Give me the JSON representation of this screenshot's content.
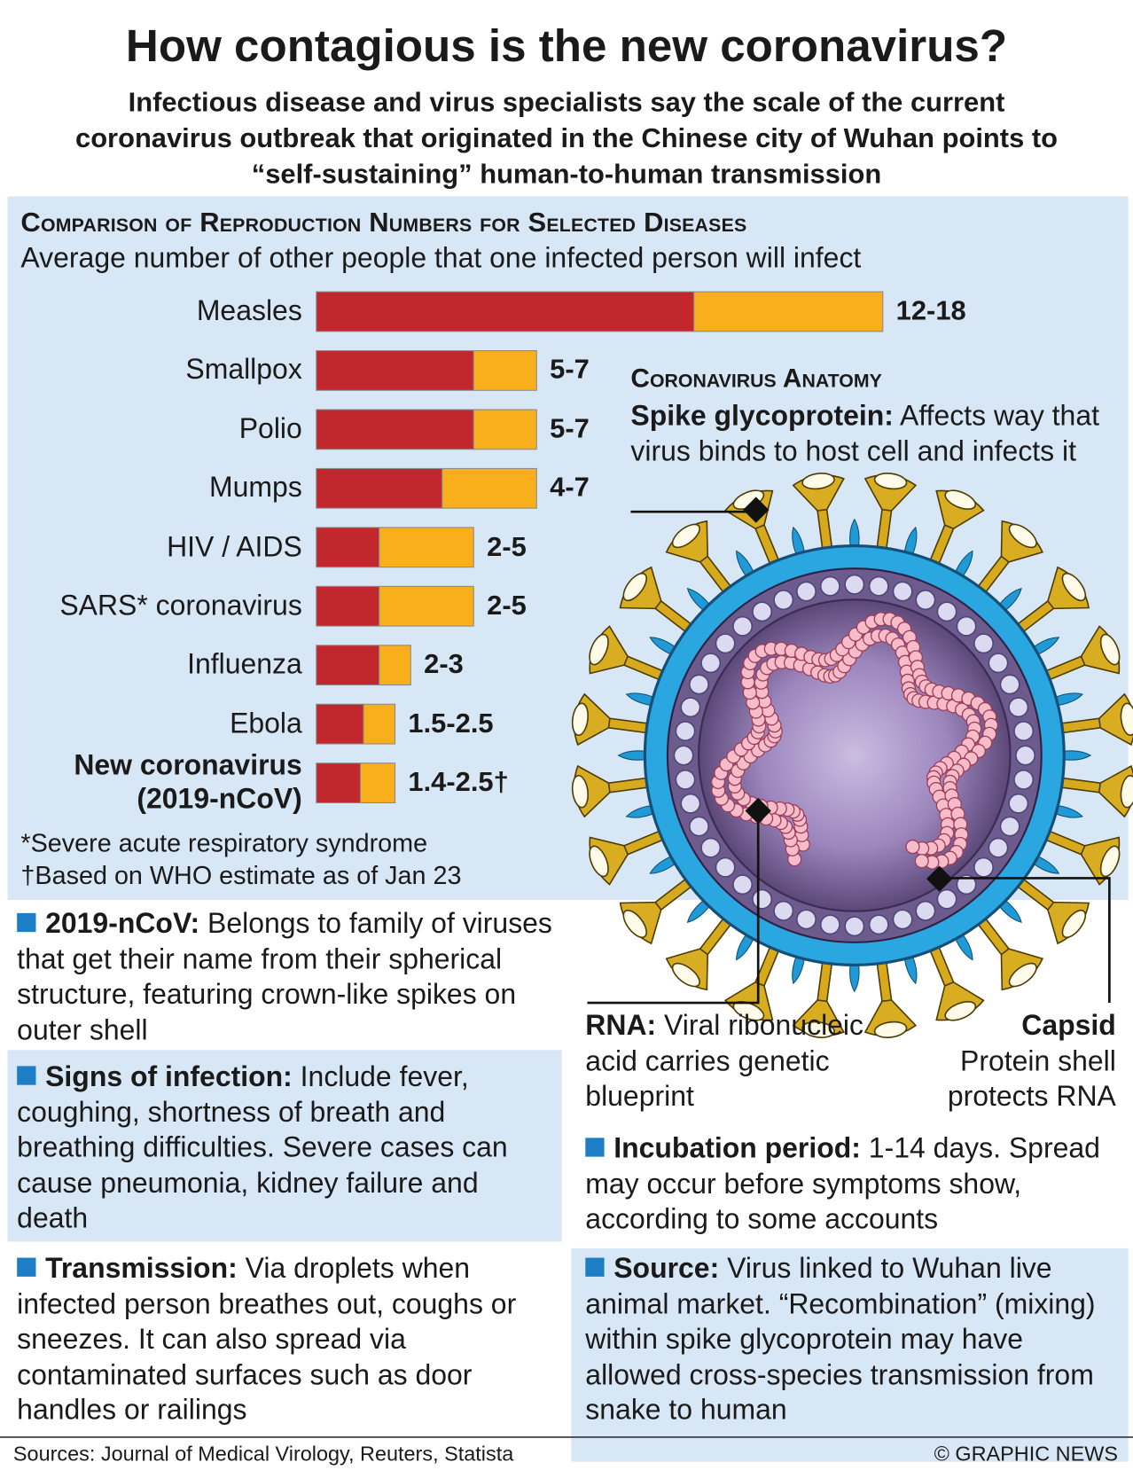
{
  "title": "How contagious is the new coronavirus?",
  "subtitle": "Infectious disease and virus specialists say the scale of the current coronavirus outbreak that originated in the Chinese city of Wuhan points to “self-sustaining” human-to-human transmission",
  "chart_data": {
    "type": "range-bar",
    "title": "Comparison of Reproduction Numbers for Selected Diseases",
    "subtitle": "Average number of other people that one infected person will infect",
    "categories": [
      "Measles",
      "Smallpox",
      "Polio",
      "Mumps",
      "HIV / AIDS",
      "SARS* coronavirus",
      "Influenza",
      "Ebola",
      "New coronavirus (2019-nCoV)"
    ],
    "series": [
      {
        "color": "#c1272d",
        "values": [
          12,
          5,
          5,
          4,
          2,
          2,
          2,
          1.5,
          1.4
        ]
      },
      {
        "color": "#f9ae1b",
        "values": [
          18,
          7,
          7,
          7,
          5,
          5,
          3,
          2.5,
          2.5
        ]
      }
    ],
    "value_labels": [
      "12-18",
      "5-7",
      "5-7",
      "4-7",
      "2-5",
      "2-5",
      "2-3",
      "1.5-2.5",
      "1.4-2.5†"
    ],
    "xlim": [
      0,
      18
    ]
  },
  "footnotes": [
    "*Severe acute respiratory syndrome",
    "†Based on WHO estimate as of Jan 23"
  ],
  "anatomy": {
    "title": "Coronavirus Anatomy",
    "spike": {
      "label": "Spike glycoprotein:",
      "text": "Affects way that virus binds to host cell and infects it"
    },
    "rna": {
      "label": "RNA:",
      "text": "Viral ribonucleic acid carries genetic blueprint"
    },
    "capsid": {
      "label": "Capsid",
      "text": "Protein shell protects RNA"
    }
  },
  "notes": [
    {
      "label": "2019-nCoV:",
      "text": "Belongs to family of viruses that get their name from their spherical structure, featuring crown-like spikes on outer shell"
    },
    {
      "label": "Signs of infection:",
      "text": "Include fever, coughing, shortness of breath and breathing difficulties. Severe cases can cause pneumonia, kidney failure and death"
    },
    {
      "label": "Transmission:",
      "text": "Via droplets when infected person breathes out, coughs or sneezes. It can also spread via contaminated surfaces such as door handles or railings"
    },
    {
      "label": "Incubation period:",
      "text": "1-14 days. Spread may occur before symptoms show, according to some accounts"
    },
    {
      "label": "Source:",
      "text": "Virus linked to Wuhan live animal market. “Recombination” (mixing) within spike glycoprotein may have allowed cross-species transmission from snake to human"
    }
  ],
  "sources": "Sources: Journal of Medical Virology, Reuters, Statista",
  "credit": "© GRAPHIC NEWS"
}
